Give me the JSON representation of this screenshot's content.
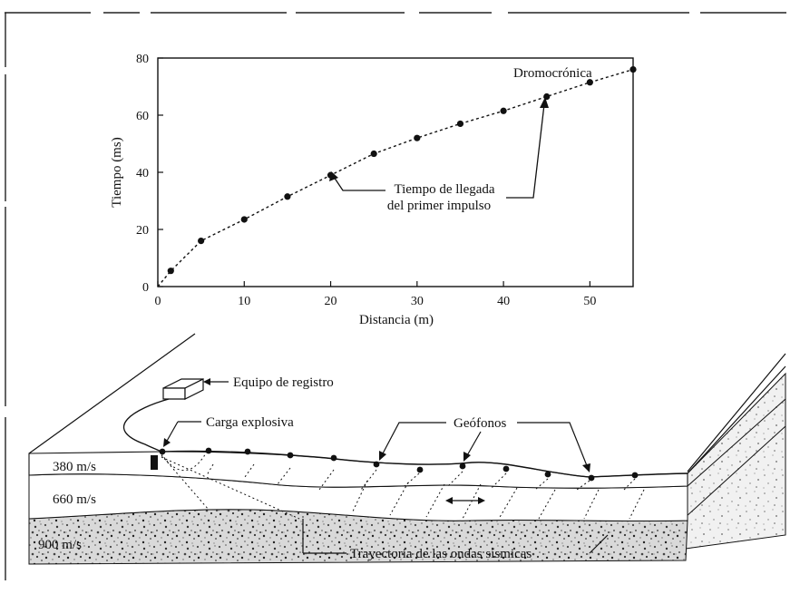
{
  "chart_data": {
    "type": "scatter",
    "xlabel": "Distancia (m)",
    "ylabel": "Tiempo (ms)",
    "xlim": [
      0,
      55
    ],
    "ylim": [
      0,
      80
    ],
    "xticks": [
      0,
      10,
      20,
      30,
      40,
      50
    ],
    "yticks": [
      0,
      20,
      40,
      60,
      80
    ],
    "series": [
      {
        "name": "Dromocrónica",
        "x": [
          1.5,
          5,
          10,
          15,
          20,
          25,
          30,
          35,
          40,
          45,
          50,
          55
        ],
        "y": [
          5.5,
          16,
          23.5,
          31.5,
          39,
          46.5,
          52,
          57,
          61.5,
          66.5,
          71.5,
          76
        ]
      }
    ],
    "curve_label": "Dromocrónica",
    "annotation": [
      "Tiempo de llegada",
      "del primer impulso"
    ]
  },
  "diagram": {
    "recorder_label": "Equipo de registro",
    "explosive_label": "Carga explosiva",
    "geophones_label": "Geófonos",
    "ray_paths_label": "Trayectoria de las ondas sísmicas",
    "layers": [
      {
        "velocity": "380 m/s"
      },
      {
        "velocity": "660 m/s"
      },
      {
        "velocity": "900 m/s"
      }
    ]
  },
  "colors": {
    "ink": "#111111",
    "paper": "#ffffff",
    "rock_speckle": "#6a6a6a"
  }
}
